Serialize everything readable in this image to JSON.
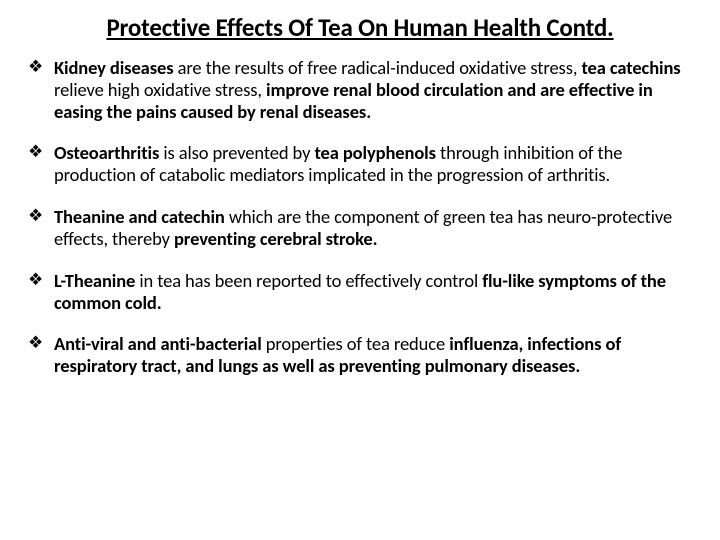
{
  "title": "Protective Effects Of Tea On Human Health Contd.",
  "bullets": [
    {
      "html": "<b>Kidney diseases</b> are the results of free radical-induced oxidative stress, <b>tea catechins</b> relieve high oxidative stress, <b>improve renal blood circulation and are effective in easing the pains caused by renal diseases.</b>"
    },
    {
      "html": "<b>Osteoarthritis</b> is also prevented by <b>tea polyphenols</b> through inhibition of the production of catabolic mediators implicated in the progression of arthritis."
    },
    {
      "html": "<b>Theanine and catechin</b> which are the component of green tea has neuro-protective effects, thereby <b>preventing cerebral stroke.</b>"
    },
    {
      "html": "<b>L-Theanine</b> in tea has been reported to effectively control <b>flu-like symptoms of the common cold.</b>"
    },
    {
      "html": "<b>Anti-viral and anti-bacterial</b> properties of tea reduce <b>influenza, infections of respiratory tract, and lungs as well as preventing pulmonary diseases.</b>"
    }
  ],
  "colors": {
    "background": "#ffffff",
    "text": "#000000"
  },
  "typography": {
    "title_fontsize": 25,
    "body_fontsize": 18.5,
    "font_family": "Calibri"
  }
}
